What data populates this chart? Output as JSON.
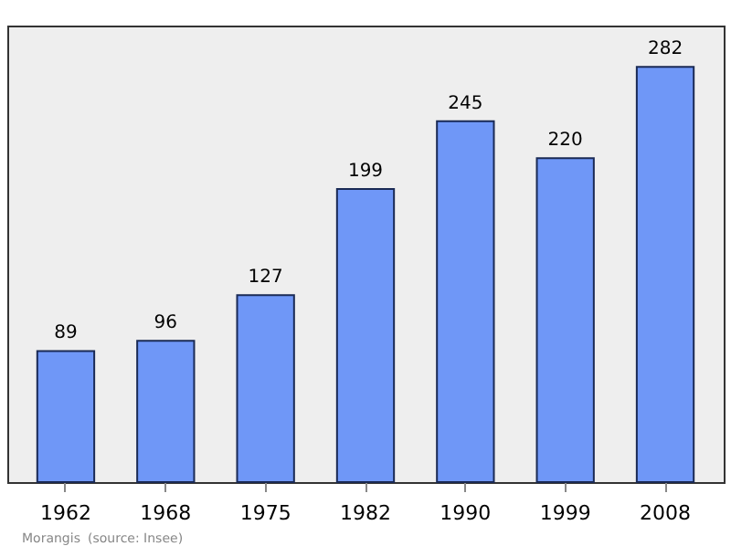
{
  "chart_data": {
    "type": "bar",
    "categories": [
      "1962",
      "1968",
      "1975",
      "1982",
      "1990",
      "1999",
      "2008"
    ],
    "values": [
      89,
      96,
      127,
      199,
      245,
      220,
      282
    ],
    "color": "#6f97f7",
    "ylim": [
      0,
      310
    ],
    "data_labels": true,
    "grid": false,
    "tick_labels": "x",
    "annotations": [
      "Morangis",
      "(source: Insee)"
    ]
  }
}
